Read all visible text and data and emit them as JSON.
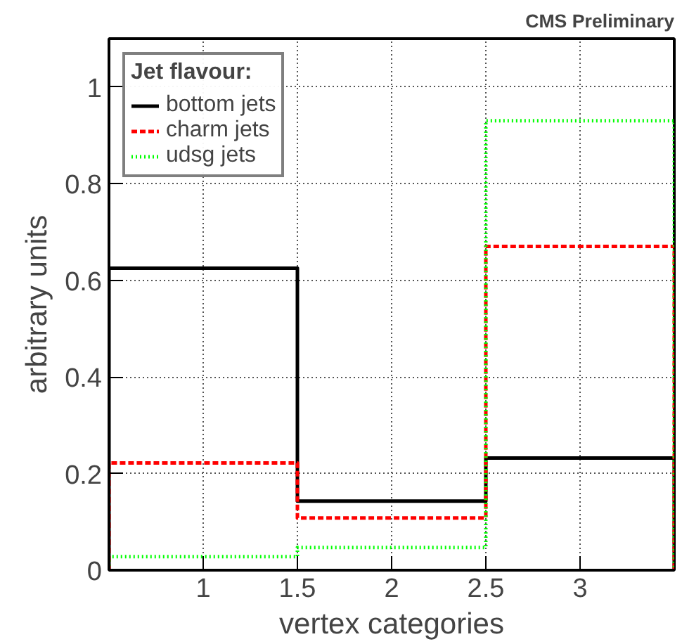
{
  "chart_data": {
    "type": "histogram",
    "annotations": [
      "CMS Preliminary"
    ],
    "xlabel": "vertex categories",
    "ylabel": "arbitrary units",
    "legend_title": "Jet flavour:",
    "bins": [
      0.5,
      1.5,
      2.5,
      3.5
    ],
    "series": [
      {
        "name": "bottom jets",
        "color": "#000000",
        "line_style": "solid",
        "values": [
          0.625,
          0.143,
          0.232
        ]
      },
      {
        "name": "charm jets",
        "color": "#ff0000",
        "line_style": "dashed",
        "values": [
          0.222,
          0.108,
          0.67
        ]
      },
      {
        "name": "udsg jets",
        "color": "#00ff00",
        "line_style": "dotted",
        "values": [
          0.028,
          0.047,
          0.93
        ]
      }
    ],
    "xlim": [
      0.5,
      3.5
    ],
    "ylim": [
      0,
      1.1
    ],
    "xticks": [
      1,
      1.5,
      2,
      2.5,
      3
    ],
    "yticks": [
      0,
      0.2,
      0.4,
      0.6,
      0.8,
      1
    ],
    "grid": true,
    "legend": "top left"
  }
}
